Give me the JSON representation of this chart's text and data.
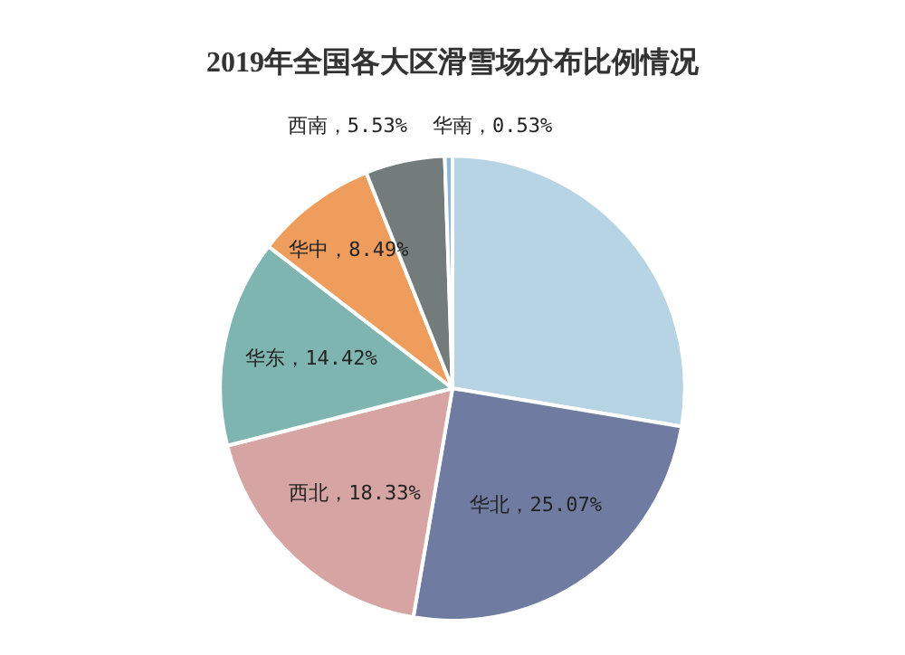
{
  "chart_data": {
    "type": "pie",
    "title": "2019年全国各大区滑雪场分布比例情况",
    "categories": [
      null,
      "华北",
      "西北",
      "华东",
      "华中",
      "西南",
      "华南"
    ],
    "values": [
      27.63,
      25.07,
      18.33,
      14.42,
      8.49,
      5.53,
      0.53
    ],
    "value_labels": [
      null,
      "25.07%",
      "18.33%",
      "14.42%",
      "8.49%",
      "5.53%",
      "0.53%"
    ],
    "colors": [
      "#b7d4e5",
      "#6f7ba0",
      "#d6a5a3",
      "#7eb5b1",
      "#ee9d5c",
      "#737b7b",
      "#8fb8d6"
    ],
    "legend": false
  }
}
